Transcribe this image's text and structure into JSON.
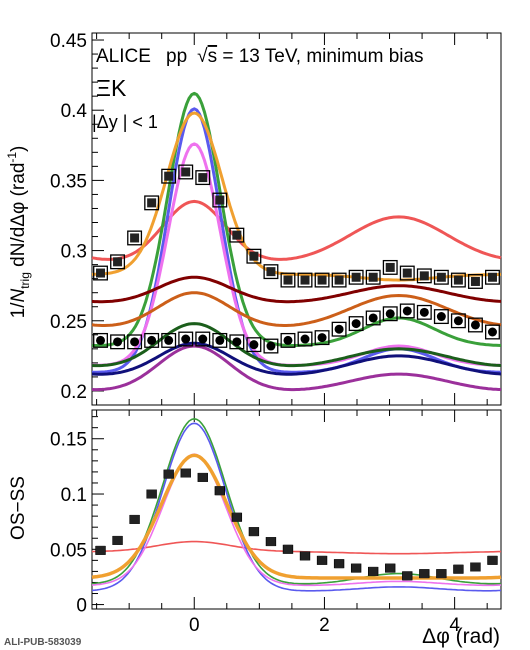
{
  "header": {
    "experiment": "ALICE",
    "collision_prefix": "pp",
    "sqrt_symbol": "√",
    "energy_var": "s",
    "energy_suffix": " = 13 TeV, minimum bias",
    "pair": "ΞK",
    "rapidity_cut": "|Δy | < 1"
  },
  "footer": {
    "id": "ALI-PUB-583039"
  },
  "colors": {
    "data": "#222222",
    "model_a": "#ef5656",
    "model_b": "#3aa03a",
    "model_c": "#5a5aee",
    "model_d": "#ee72ee",
    "model_e": "#f0a030",
    "model_f": "#800000",
    "model_g": "#cc5f19",
    "model_h": "#1b5e1b",
    "model_i": "#10107a",
    "model_j": "#9b309b"
  },
  "chart_data": [
    {
      "type": "line",
      "panel": "top",
      "ylabel": "1/N_trig dN/dΔφ (rad⁻¹)",
      "ylabel_parts": {
        "pre": "1/",
        "n": "N",
        "sub": "trig",
        "mid": " dN/dΔφ (rad",
        "sup": "-1",
        "post": ")"
      },
      "xlim": [
        -1.5708,
        4.7124
      ],
      "ylim": [
        0.19,
        0.455
      ],
      "x_ticks": [
        0,
        2,
        4
      ],
      "y_ticks": [
        0.2,
        0.25,
        0.3,
        0.35,
        0.4,
        0.45
      ],
      "y_tick_labels": [
        "0.2",
        "0.25",
        "0.3",
        "0.35",
        "0.4",
        "0.45"
      ],
      "x_points": [
        -1.4399,
        -1.1781,
        -0.9163,
        -0.6545,
        -0.3927,
        -0.1309,
        0.1309,
        0.3927,
        0.6545,
        0.9163,
        1.1781,
        1.4399,
        1.7017,
        1.9635,
        2.2253,
        2.4871,
        2.7489,
        3.0107,
        3.2725,
        3.5343,
        3.7961,
        4.0579,
        4.3197,
        4.5815
      ],
      "data_series": [
        {
          "marker": "square",
          "values": [
            0.284,
            0.292,
            0.309,
            0.334,
            0.353,
            0.356,
            0.352,
            0.336,
            0.311,
            0.296,
            0.285,
            0.279,
            0.279,
            0.279,
            0.279,
            0.281,
            0.281,
            0.288,
            0.284,
            0.282,
            0.281,
            0.279,
            0.278,
            0.281
          ],
          "err": [
            0.004,
            0.004,
            0.004,
            0.004,
            0.004,
            0.004,
            0.004,
            0.004,
            0.004,
            0.004,
            0.004,
            0.004,
            0.004,
            0.004,
            0.004,
            0.004,
            0.004,
            0.004,
            0.004,
            0.004,
            0.004,
            0.004,
            0.004,
            0.004
          ]
        },
        {
          "marker": "circle",
          "values": [
            0.236,
            0.235,
            0.235,
            0.236,
            0.236,
            0.237,
            0.237,
            0.236,
            0.235,
            0.233,
            0.232,
            0.236,
            0.237,
            0.238,
            0.244,
            0.248,
            0.252,
            0.255,
            0.257,
            0.256,
            0.253,
            0.25,
            0.247,
            0.242
          ],
          "err": [
            0.004,
            0.004,
            0.004,
            0.004,
            0.004,
            0.004,
            0.004,
            0.004,
            0.004,
            0.004,
            0.004,
            0.004,
            0.004,
            0.004,
            0.004,
            0.004,
            0.004,
            0.004,
            0.004,
            0.004,
            0.004,
            0.004,
            0.004,
            0.004
          ]
        }
      ],
      "model_curves": [
        {
          "color": "#ef5656",
          "base": 0.291,
          "peak": 0.044,
          "away": 0.033,
          "ns_sigma": 0.48,
          "as_sigma": 0.75
        },
        {
          "color": "#3aa03a",
          "base": 0.232,
          "peak": 0.18,
          "away": 0.02,
          "ns_sigma": 0.4,
          "as_sigma": 0.55
        },
        {
          "color": "#5a5aee",
          "base": 0.213,
          "peak": 0.188,
          "away": 0.017,
          "ns_sigma": 0.4,
          "as_sigma": 0.55
        },
        {
          "color": "#ee72ee",
          "base": 0.218,
          "peak": 0.158,
          "away": 0.014,
          "ns_sigma": 0.4,
          "as_sigma": 0.55
        },
        {
          "color": "#f0a030",
          "base": 0.283,
          "peak": 0.115,
          "away": -0.004,
          "ns_sigma": 0.42,
          "as_sigma": 0.55
        },
        {
          "color": "#800000",
          "base": 0.262,
          "peak": 0.019,
          "away": 0.013,
          "ns_sigma": 0.55,
          "as_sigma": 0.75
        },
        {
          "color": "#cc5f19",
          "base": 0.244,
          "peak": 0.026,
          "away": 0.024,
          "ns_sigma": 0.55,
          "as_sigma": 0.75
        },
        {
          "color": "#1b5e1b",
          "base": 0.216,
          "peak": 0.032,
          "away": 0.014,
          "ns_sigma": 0.55,
          "as_sigma": 0.75
        },
        {
          "color": "#10107a",
          "base": 0.21,
          "peak": 0.024,
          "away": 0.015,
          "ns_sigma": 0.55,
          "as_sigma": 0.75
        },
        {
          "color": "#9b309b",
          "base": 0.199,
          "peak": 0.033,
          "away": 0.013,
          "ns_sigma": 0.55,
          "as_sigma": 0.75
        }
      ]
    },
    {
      "type": "line",
      "panel": "bottom",
      "xlabel": "Δφ (rad)",
      "ylabel": "OS−SS",
      "xlim": [
        -1.5708,
        4.7124
      ],
      "ylim": [
        -0.004,
        0.176
      ],
      "x_ticks": [
        0,
        2,
        4
      ],
      "x_tick_labels": [
        "0",
        "2",
        "4"
      ],
      "y_ticks": [
        0,
        0.05,
        0.1,
        0.15
      ],
      "y_tick_labels": [
        "0",
        "0.05",
        "0.1",
        "0.15"
      ],
      "x_points": [
        -1.4399,
        -1.1781,
        -0.9163,
        -0.6545,
        -0.3927,
        -0.1309,
        0.1309,
        0.3927,
        0.6545,
        0.9163,
        1.1781,
        1.4399,
        1.7017,
        1.9635,
        2.2253,
        2.4871,
        2.7489,
        3.0107,
        3.2725,
        3.5343,
        3.7961,
        4.0579,
        4.3197,
        4.5815
      ],
      "data_series": [
        {
          "marker": "square",
          "values": [
            0.049,
            0.058,
            0.077,
            0.1,
            0.118,
            0.119,
            0.115,
            0.103,
            0.079,
            0.066,
            0.057,
            0.05,
            0.044,
            0.04,
            0.037,
            0.033,
            0.03,
            0.033,
            0.026,
            0.028,
            0.028,
            0.032,
            0.034,
            0.04
          ],
          "err": [
            0.003,
            0.003,
            0.003,
            0.003,
            0.003,
            0.003,
            0.003,
            0.003,
            0.003,
            0.003,
            0.003,
            0.003,
            0.003,
            0.003,
            0.003,
            0.003,
            0.003,
            0.003,
            0.003,
            0.003,
            0.003,
            0.003,
            0.003,
            0.003
          ]
        }
      ],
      "model_curves": [
        {
          "color": "#ef5656",
          "base": 0.048,
          "peak": 0.009,
          "away": -0.002,
          "ns_sigma": 0.55,
          "as_sigma": 0.75,
          "width": 1.6
        },
        {
          "color": "#3aa03a",
          "base": 0.018,
          "peak": 0.15,
          "away": 0.01,
          "ns_sigma": 0.48,
          "as_sigma": 0.6,
          "width": 1.6
        },
        {
          "color": "#5a5aee",
          "base": 0.012,
          "peak": 0.152,
          "away": 0.004,
          "ns_sigma": 0.48,
          "as_sigma": 0.6,
          "width": 1.6
        },
        {
          "color": "#ee72ee",
          "base": 0.017,
          "peak": 0.119,
          "away": 0.004,
          "ns_sigma": 0.48,
          "as_sigma": 0.6,
          "width": 1.6
        },
        {
          "color": "#f0a030",
          "base": 0.024,
          "peak": 0.111,
          "away": 0.0,
          "ns_sigma": 0.5,
          "as_sigma": 0.6,
          "width": 3.5
        }
      ]
    }
  ]
}
